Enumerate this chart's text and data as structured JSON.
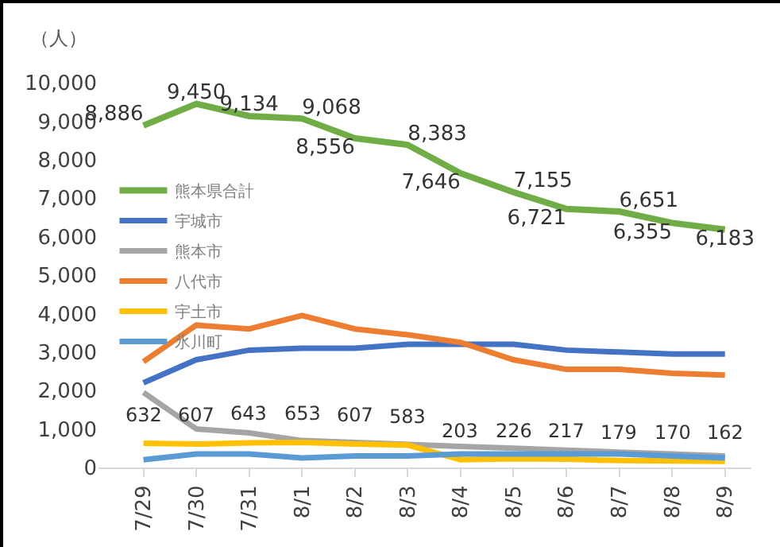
{
  "chart_data": {
    "type": "line",
    "ylabel": "（人）",
    "categories": [
      "7/29",
      "7/30",
      "7/31",
      "8/1",
      "8/2",
      "8/3",
      "8/4",
      "8/5",
      "8/6",
      "8/7",
      "8/8",
      "8/9"
    ],
    "series": [
      {
        "name": "熊本県合計",
        "color": "#70ad47",
        "values": [
          8886,
          9450,
          9134,
          9068,
          8556,
          8383,
          7646,
          7155,
          6721,
          6651,
          6355,
          6183
        ],
        "value_labels": [
          "8,886",
          "9,450",
          "9,134",
          "9,068",
          "8,556",
          "8,383",
          "7,646",
          "7,155",
          "6,721",
          "6,651",
          "6,355",
          "6,183"
        ]
      },
      {
        "name": "宇城市",
        "color": "#4472c4",
        "values": [
          2200,
          2800,
          3050,
          3100,
          3100,
          3200,
          3200,
          3200,
          3050,
          3000,
          2950,
          2950
        ]
      },
      {
        "name": "熊本市",
        "color": "#a5a5a5",
        "values": [
          1950,
          1000,
          900,
          700,
          650,
          600,
          550,
          500,
          450,
          400,
          350,
          300
        ]
      },
      {
        "name": "八代市",
        "color": "#ed7d31",
        "values": [
          2750,
          3700,
          3600,
          3950,
          3600,
          3450,
          3250,
          2800,
          2550,
          2550,
          2450,
          2400
        ]
      },
      {
        "name": "宇土市",
        "color": "#ffc000",
        "values": [
          632,
          607,
          643,
          653,
          607,
          583,
          203,
          226,
          217,
          179,
          170,
          162
        ],
        "value_labels": [
          "632",
          "607",
          "643",
          "653",
          "607",
          "583",
          "203",
          "226",
          "217",
          "179",
          "170",
          "162"
        ]
      },
      {
        "name": "氷川町",
        "color": "#5b9bd5",
        "values": [
          200,
          350,
          350,
          250,
          300,
          300,
          350,
          350,
          350,
          350,
          300,
          250
        ]
      }
    ],
    "ylim": [
      0,
      10000
    ],
    "yticks": [
      0,
      {
        "value": 1000,
        "label": "1,000"
      },
      {
        "value": 2000,
        "label": "2,000"
      },
      {
        "value": 3000,
        "label": "3,000"
      },
      {
        "value": 4000,
        "label": "4,000"
      },
      {
        "value": 5000,
        "label": "5,000"
      },
      {
        "value": 6000,
        "label": "6,000"
      },
      {
        "value": 7000,
        "label": "7,000"
      },
      {
        "value": 8000,
        "label": "8,000"
      },
      {
        "value": 9000,
        "label": "9,000"
      },
      {
        "value": 10000,
        "label": "10,000"
      }
    ],
    "grid": false,
    "legend": "left",
    "marker": "none",
    "line_style": "solid"
  }
}
